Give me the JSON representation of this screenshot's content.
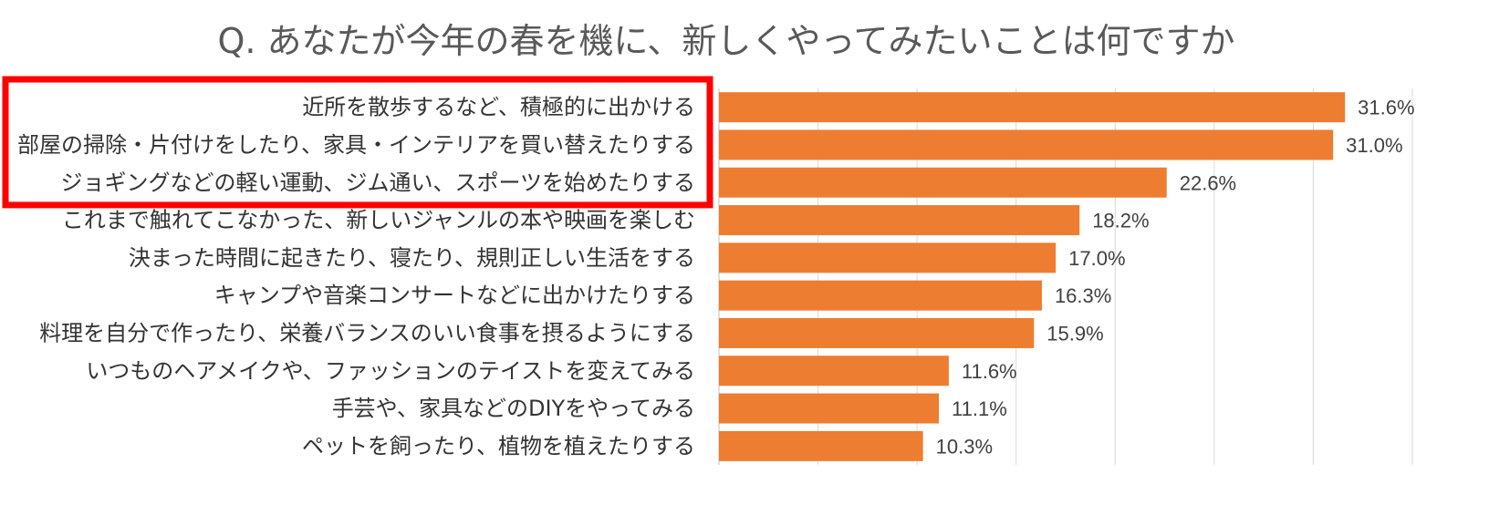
{
  "chart_data": {
    "type": "bar",
    "orientation": "horizontal",
    "title": "Q.  あなたが今年の春を機に、新しくやってみたいことは何ですか",
    "categories": [
      "近所を散歩するなど、積極的に出かける",
      "部屋の掃除・片付けをしたり、家具・インテリアを買い替えたりする",
      "ジョギングなどの軽い運動、ジム通い、スポーツを始めたりする",
      "これまで触れてこなかった、新しいジャンルの本や映画を楽しむ",
      "決まった時間に起きたり、寝たり、規則正しい生活をする",
      "キャンプや音楽コンサートなどに出かけたりする",
      "料理を自分で作ったり、栄養バランスのいい食事を摂るようにする",
      "いつものヘアメイクや、ファッションのテイストを変えてみる",
      "手芸や、家具などのDIYをやってみる",
      "ペットを飼ったり、植物を植えたりする"
    ],
    "values": [
      31.6,
      31.0,
      22.6,
      18.2,
      17.0,
      16.3,
      15.9,
      11.6,
      11.1,
      10.3
    ],
    "value_labels": [
      "31.6%",
      "31.0%",
      "22.6%",
      "18.2%",
      "17.0%",
      "16.3%",
      "15.9%",
      "11.6%",
      "11.1%",
      "10.3%"
    ],
    "unit": "%",
    "xlim": [
      0,
      35
    ],
    "grid": true,
    "bar_color": "#ED7D31",
    "highlight": {
      "color": "#FF0000",
      "categories_highlighted": 3
    }
  }
}
